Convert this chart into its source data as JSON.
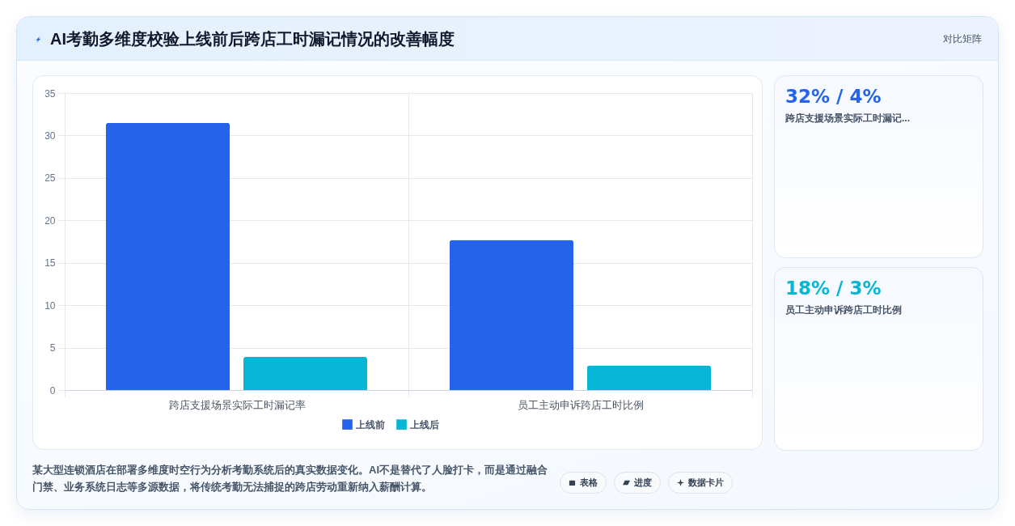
{
  "chart_data": {
    "type": "bar",
    "title": "AI考勤多维度校验上线前后跨店工时漏记情况的改善幅度",
    "subtitle": "对比矩阵",
    "categories": [
      "跨店支援场景实际工时漏记率",
      "员工主动申诉跨店工时比例"
    ],
    "series": [
      {
        "name": "上线前",
        "color": "#2563eb",
        "values": [
          31.5,
          17.7
        ]
      },
      {
        "name": "上线后",
        "color": "#06b6d4",
        "values": [
          3.9,
          2.9
        ]
      }
    ],
    "ylim": [
      0,
      35
    ],
    "yticks": [
      0,
      5,
      10,
      15,
      20,
      25,
      30,
      35
    ],
    "grid": true,
    "legend": "bottom",
    "annotations": [
      "32% / 4%",
      "跨店支援场景实际工时漏记...",
      "18% / 3%",
      "员工主动申诉跨店工时比例",
      "某大型连锁酒店在部署多维度时空行为分析考勤系统后的真实数据变化。AI不是替代了人脸打卡，而是通过融合门禁、业务系统日志等多源数据，将传统考勤无法捕捉的跨店劳动重新纳入薪酬计算。",
      "表格",
      "进度",
      "数据卡片"
    ]
  }
}
